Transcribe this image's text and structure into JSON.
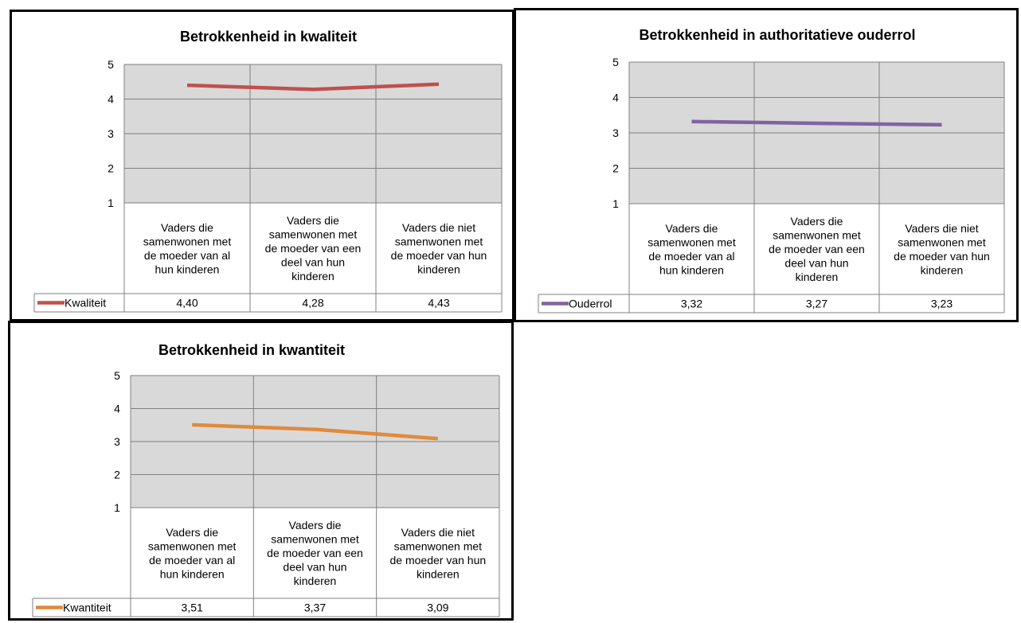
{
  "chart_data": [
    {
      "type": "line",
      "title": "Betrokkenheid in kwaliteit",
      "categories": [
        [
          "Vaders die",
          "samenwonen met",
          "de moeder van al",
          "hun kinderen"
        ],
        [
          "Vaders die",
          "samenwonen met",
          "de moeder van een",
          "deel van hun",
          "kinderen"
        ],
        [
          "Vaders die niet",
          "samenwonen met",
          "de moeder van hun",
          "kinderen"
        ]
      ],
      "series": [
        {
          "name": "Kwaliteit",
          "values": [
            4.4,
            4.28,
            4.43
          ],
          "labels": [
            "4,40",
            "4,28",
            "4,43"
          ],
          "color": "#c0504d"
        }
      ],
      "ylim": [
        1,
        5
      ],
      "yticks": [
        "1",
        "2",
        "3",
        "4",
        "5"
      ],
      "plot_background": "#d9d9d9",
      "grid": true,
      "legend": "data-table"
    },
    {
      "type": "line",
      "title": "Betrokkenheid in authoritatieve ouderrol",
      "categories": [
        [
          "Vaders die",
          "samenwonen met",
          "de moeder van al",
          "hun kinderen"
        ],
        [
          "Vaders die",
          "samenwonen met",
          "de moeder van een",
          "deel van hun",
          "kinderen"
        ],
        [
          "Vaders die niet",
          "samenwonen met",
          "de moeder van hun",
          "kinderen"
        ]
      ],
      "series": [
        {
          "name": "Ouderrol",
          "values": [
            3.32,
            3.27,
            3.23
          ],
          "labels": [
            "3,32",
            "3,27",
            "3,23"
          ],
          "color": "#8064a2"
        }
      ],
      "ylim": [
        1,
        5
      ],
      "yticks": [
        "1",
        "2",
        "3",
        "4",
        "5"
      ],
      "plot_background": "#d9d9d9",
      "grid": true,
      "legend": "data-table"
    },
    {
      "type": "line",
      "title": "Betrokkenheid in kwantiteit",
      "categories": [
        [
          "Vaders die",
          "samenwonen met",
          "de moeder van al",
          "hun kinderen"
        ],
        [
          "Vaders die",
          "samenwonen met",
          "de moeder van een",
          "deel van hun",
          "kinderen"
        ],
        [
          "Vaders die niet",
          "samenwonen met",
          "de moeder van hun",
          "kinderen"
        ]
      ],
      "series": [
        {
          "name": "Kwantiteit",
          "values": [
            3.51,
            3.37,
            3.09
          ],
          "labels": [
            "3,51",
            "3,37",
            "3,09"
          ],
          "color": "#e08a3c"
        }
      ],
      "ylim": [
        1,
        5
      ],
      "yticks": [
        "1",
        "2",
        "3",
        "4",
        "5"
      ],
      "plot_background": "#d9d9d9",
      "grid": true,
      "legend": "data-table"
    }
  ]
}
